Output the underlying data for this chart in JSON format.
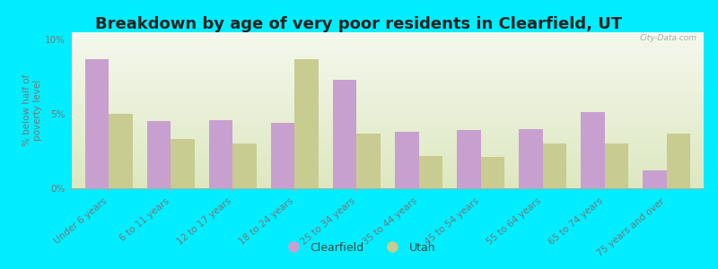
{
  "categories": [
    "Under 6 years",
    "6 to 11 years",
    "12 to 17 years",
    "18 to 24 years",
    "25 to 34 years",
    "35 to 44 years",
    "45 to 54 years",
    "55 to 64 years",
    "65 to 74 years",
    "75 years and over"
  ],
  "clearfield": [
    8.7,
    4.5,
    4.6,
    4.4,
    7.3,
    3.8,
    3.9,
    4.0,
    5.1,
    1.2
  ],
  "utah": [
    5.0,
    3.3,
    3.0,
    8.7,
    3.7,
    2.2,
    2.1,
    3.0,
    3.0,
    3.7
  ],
  "clearfield_color": "#c8a0d0",
  "utah_color": "#c8cc90",
  "title": "Breakdown by age of very poor residents in Clearfield, UT",
  "ylabel": "% below half of\npoverty level",
  "ylim": [
    0,
    10.5
  ],
  "yticks": [
    0,
    5,
    10
  ],
  "ytick_labels": [
    "0%",
    "5%",
    "10%"
  ],
  "bg_outer": "#00eeff",
  "bg_plot_top": "#f0f4e8",
  "bg_plot_bottom": "#e8eecc",
  "title_fontsize": 13,
  "axis_fontsize": 7.5,
  "bar_width": 0.38,
  "legend_labels": [
    "Clearfield",
    "Utah"
  ],
  "watermark": "City-Data.com"
}
